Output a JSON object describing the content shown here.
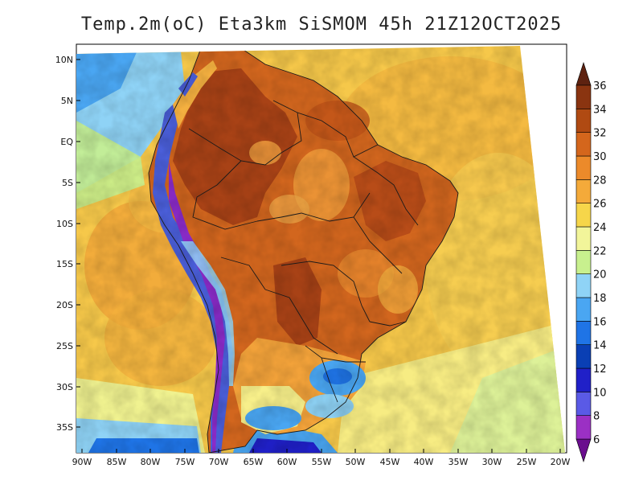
{
  "title": "Temp.2m(oC) Eta3km SiSMOM 45h 21Z12OCT2025",
  "axes": {
    "lat_labels": [
      "10N",
      "5N",
      "EQ",
      "5S",
      "10S",
      "15S",
      "20S",
      "25S",
      "30S",
      "35S"
    ],
    "lon_labels": [
      "90W",
      "85W",
      "80W",
      "75W",
      "70W",
      "65W",
      "60W",
      "55W",
      "50W",
      "45W",
      "40W",
      "35W",
      "30W",
      "25W",
      "20W"
    ]
  },
  "colorbar": {
    "labels": [
      "6",
      "8",
      "10",
      "12",
      "14",
      "16",
      "18",
      "20",
      "22",
      "24",
      "26",
      "28",
      "30",
      "32",
      "34",
      "36"
    ],
    "colors": [
      "#6a0d8e",
      "#9b30c4",
      "#5a5ae6",
      "#2020c8",
      "#0a3fb4",
      "#1f74e6",
      "#4aa6f2",
      "#8fd3f6",
      "#c8f08e",
      "#f2f59a",
      "#f6d64a",
      "#f4aa3a",
      "#ec8a2a",
      "#d4661c",
      "#b04a12",
      "#8a3410",
      "#5e2210"
    ]
  },
  "colors": {
    "ocean_atlantic": "#f6c84a",
    "ocean_pacific": "#f4b03a",
    "ocean_cool": "#f7f19a",
    "land_hot": "#c8581c",
    "land_very_hot": "#9a3a12",
    "andes_cold": "#4a5ed8",
    "south_cool": "#5aa8f0",
    "border": "#1a1a1a"
  }
}
